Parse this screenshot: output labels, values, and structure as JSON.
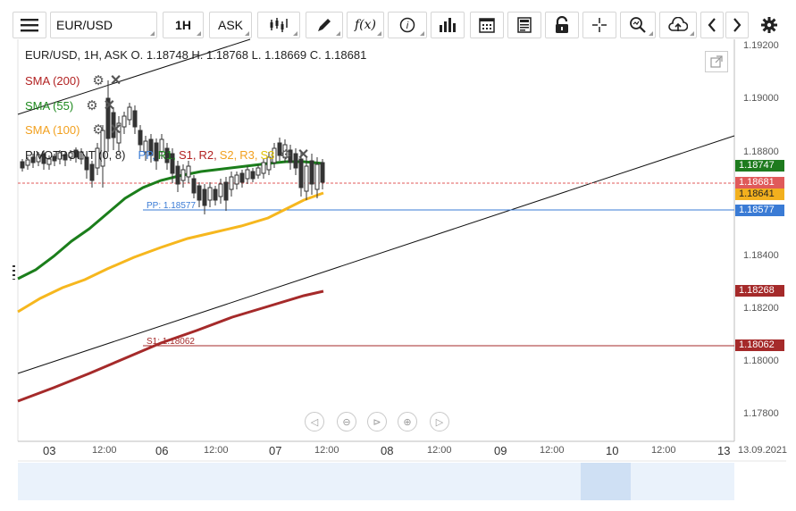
{
  "toolbar": {
    "symbol": "EUR/USD",
    "interval": "1H",
    "price_type": "ASK",
    "fx_label": "f(x)"
  },
  "legend": {
    "ohlc": "EUR/USD, 1H, ASK   O. 1.18748 H. 1.18768 L. 1.18669 C. 1.18681"
  },
  "indicators": [
    {
      "label": "SMA (200)",
      "color": "#b22222"
    },
    {
      "label": "SMA (55)",
      "color": "#1e8a1e"
    },
    {
      "label": "SMA (100)",
      "color": "#f2b01e"
    }
  ],
  "pivot": {
    "label": "PIVOTPOINT (0, 8)",
    "levels": [
      {
        "label": "PP,",
        "color": "#3a7bd5"
      },
      {
        "label": "R1,",
        "color": "#1e8a1e"
      },
      {
        "label": "S1,",
        "color": "#b22222"
      },
      {
        "label": "R2,",
        "color": "#b22222"
      },
      {
        "label": "S2,",
        "color": "#f2a01e"
      },
      {
        "label": "R3,",
        "color": "#f2a01e"
      },
      {
        "label": "S3",
        "color": "#e0c000"
      }
    ],
    "pp_line_label": "PP: 1.18577",
    "s1_line_label": "S1: 1.18062"
  },
  "y_axis": [
    "1.19200",
    "1.19000",
    "1.18800",
    "1.18400",
    "1.18200",
    "1.18000",
    "1.17800"
  ],
  "price_tags": [
    {
      "value": "1.18747",
      "color": "#1e7b1e"
    },
    {
      "value": "1.18681",
      "color": "#e05a5a"
    },
    {
      "value": "1.18641",
      "color": "#f2b01e"
    },
    {
      "value": "1.18577",
      "color": "#3a7bd5"
    },
    {
      "value": "1.18268",
      "color": "#a52a2a"
    },
    {
      "value": "1.18062",
      "color": "#a52a2a"
    }
  ],
  "x_axis": {
    "days": [
      "03",
      "06",
      "07",
      "08",
      "09",
      "10",
      "13"
    ],
    "times": [
      "12:00",
      "12:00",
      "12:00",
      "12:00",
      "12:00",
      "12:00"
    ],
    "end_date": "13.09.2021"
  },
  "icons": [
    "menu-icon",
    "candles-icon",
    "pencil-icon",
    "info-icon",
    "bars-icon",
    "calendar-icon",
    "document-icon",
    "lock-icon",
    "crosshair-icon",
    "zoom-icon",
    "cloud-upload-icon",
    "chevron-left-icon",
    "chevron-right-icon",
    "gear-icon",
    "expand-icon"
  ]
}
